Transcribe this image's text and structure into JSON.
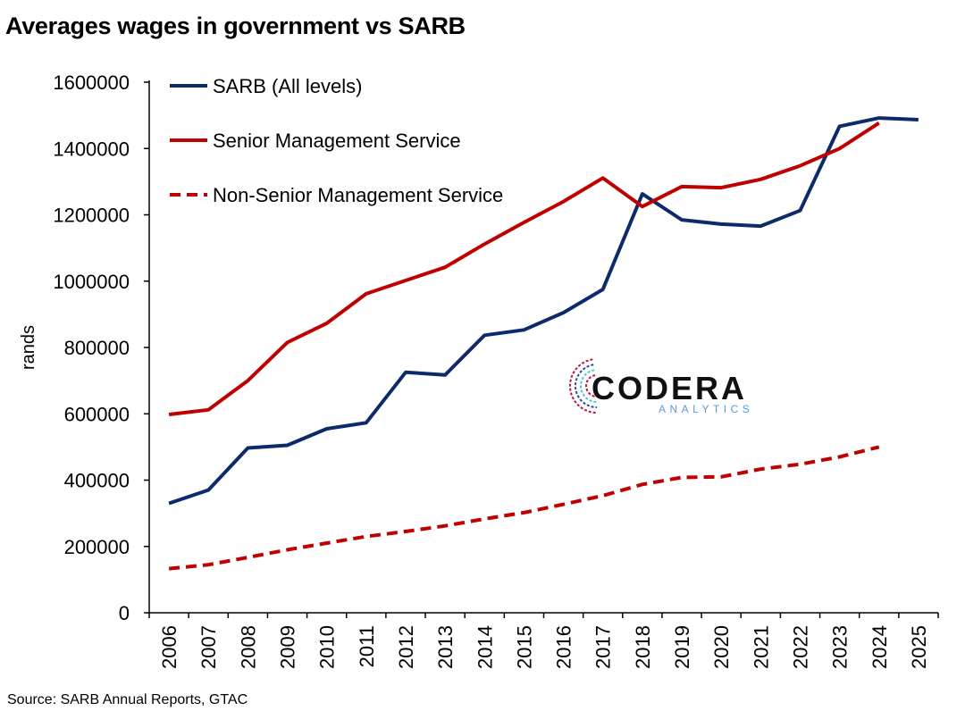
{
  "chart_data": {
    "type": "line",
    "title": "Averages wages in government vs SARB",
    "ylabel": "rands",
    "xlabel": "",
    "ylim": [
      0,
      1600000
    ],
    "yticks": [
      0,
      200000,
      400000,
      600000,
      800000,
      1000000,
      1200000,
      1400000,
      1600000
    ],
    "ytick_labels": [
      "0",
      "200000",
      "400000",
      "600000",
      "800000",
      "1000000",
      "1200000",
      "1400000",
      "1600000"
    ],
    "categories": [
      "2006",
      "2007",
      "2008",
      "2009",
      "2010",
      "2011",
      "2012",
      "2013",
      "2014",
      "2015",
      "2016",
      "2017",
      "2018",
      "2019",
      "2020",
      "2021",
      "2022",
      "2023",
      "2024",
      "2025"
    ],
    "legend_position": "top-left",
    "grid": false,
    "series": [
      {
        "name": "SARB (All levels)",
        "color": "#0d2b6b",
        "style": "solid",
        "values": [
          330000,
          370000,
          497000,
          505000,
          555000,
          573000,
          725000,
          717000,
          837000,
          853000,
          905000,
          975000,
          1263000,
          1185000,
          1172000,
          1166000,
          1213000,
          1467000,
          1492000,
          1487000
        ]
      },
      {
        "name": "Senior Management Service",
        "color": "#c00000",
        "style": "solid",
        "values": [
          598000,
          612000,
          700000,
          815000,
          873000,
          962000,
          1002000,
          1042000,
          1112000,
          1177000,
          1240000,
          1311000,
          1225000,
          1285000,
          1282000,
          1307000,
          1348000,
          1400000,
          1477000,
          null
        ]
      },
      {
        "name": "Non-Senior Management Service",
        "color": "#c00000",
        "style": "dashed",
        "values": [
          133000,
          145000,
          167000,
          190000,
          210000,
          230000,
          245000,
          262000,
          283000,
          302000,
          327000,
          353000,
          387000,
          408000,
          410000,
          433000,
          448000,
          470000,
          500000,
          null
        ]
      }
    ]
  },
  "logo": {
    "name": "CODERA",
    "sub": "ANALYTICS",
    "colors": [
      "#c0143c",
      "#1f4e9c",
      "#5bc0de"
    ]
  },
  "source": "Source: SARB Annual Reports, GTAC"
}
